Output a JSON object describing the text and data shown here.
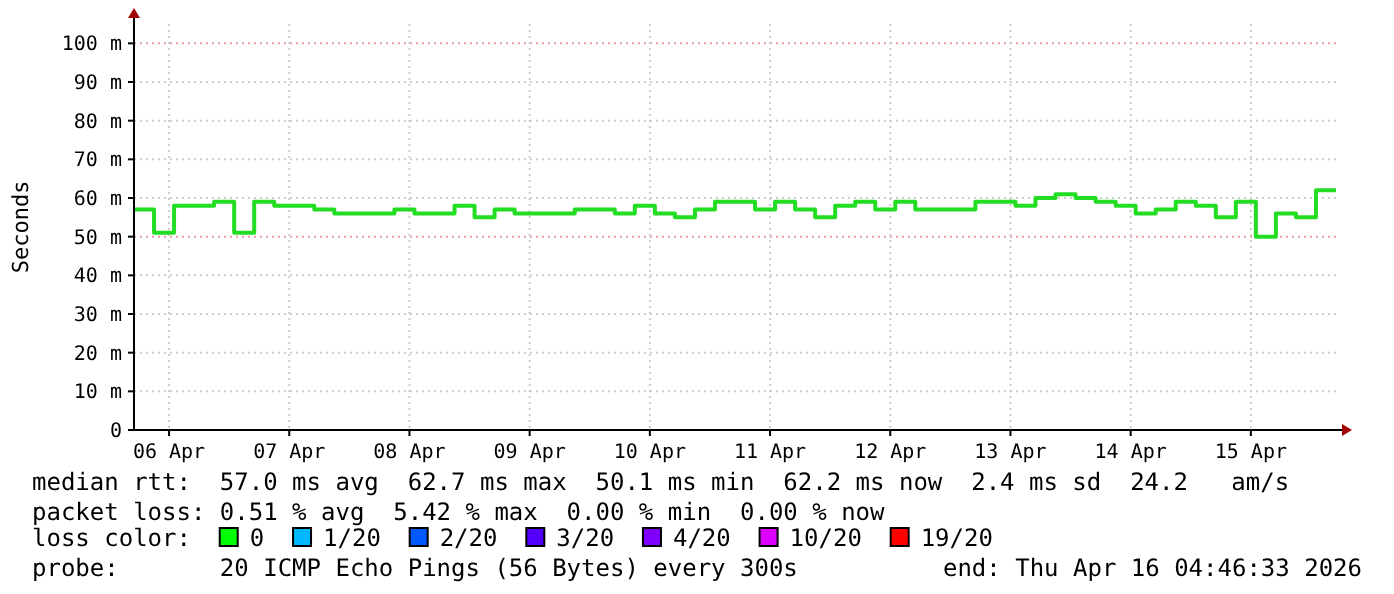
{
  "chart_data": {
    "type": "step",
    "ylabel": "Seconds",
    "x": [
      "2026-04-06T05:00",
      "2026-04-06T09:00",
      "2026-04-06T13:00",
      "2026-04-06T17:00",
      "2026-04-06T21:00",
      "2026-04-07T01:00",
      "2026-04-07T05:00",
      "2026-04-07T09:00",
      "2026-04-07T13:00",
      "2026-04-07T17:00",
      "2026-04-07T21:00",
      "2026-04-08T01:00",
      "2026-04-08T05:00",
      "2026-04-08T09:00",
      "2026-04-08T13:00",
      "2026-04-08T17:00",
      "2026-04-08T21:00",
      "2026-04-09T01:00",
      "2026-04-09T05:00",
      "2026-04-09T09:00",
      "2026-04-09T13:00",
      "2026-04-09T17:00",
      "2026-04-09T21:00",
      "2026-04-10T01:00",
      "2026-04-10T05:00",
      "2026-04-10T09:00",
      "2026-04-10T13:00",
      "2026-04-10T17:00",
      "2026-04-10T21:00",
      "2026-04-11T01:00",
      "2026-04-11T05:00",
      "2026-04-11T09:00",
      "2026-04-11T13:00",
      "2026-04-11T17:00",
      "2026-04-11T21:00",
      "2026-04-12T01:00",
      "2026-04-12T05:00",
      "2026-04-12T09:00",
      "2026-04-12T13:00",
      "2026-04-12T17:00",
      "2026-04-12T21:00",
      "2026-04-13T01:00",
      "2026-04-13T05:00",
      "2026-04-13T09:00",
      "2026-04-13T13:00",
      "2026-04-13T17:00",
      "2026-04-13T21:00",
      "2026-04-14T01:00",
      "2026-04-14T05:00",
      "2026-04-14T09:00",
      "2026-04-14T13:00",
      "2026-04-14T17:00",
      "2026-04-14T21:00",
      "2026-04-15T01:00",
      "2026-04-15T05:00",
      "2026-04-15T09:00",
      "2026-04-15T13:00",
      "2026-04-15T17:00",
      "2026-04-15T21:00",
      "2026-04-16T01:00",
      "2026-04-16T05:00"
    ],
    "series": [
      {
        "color": "#22dd22",
        "values": [
          57,
          51,
          58,
          58,
          59,
          51,
          59,
          58,
          58,
          57,
          56,
          56,
          56,
          57,
          56,
          56,
          58,
          55,
          57,
          56,
          56,
          56,
          57,
          57,
          56,
          58,
          56,
          55,
          57,
          59,
          59,
          57,
          59,
          57,
          55,
          58,
          59,
          57,
          59,
          57,
          57,
          57,
          59,
          59,
          58,
          60,
          61,
          60,
          59,
          58,
          56,
          57,
          59,
          58,
          55,
          59,
          50,
          56,
          55,
          62,
          62
        ]
      }
    ],
    "xlim": [
      "2026-04-06T05:00",
      "2026-04-16T05:00"
    ],
    "xticks": [
      {
        "value": "2026-04-06T12:00",
        "label": "06 Apr"
      },
      {
        "value": "2026-04-07T12:00",
        "label": "07 Apr"
      },
      {
        "value": "2026-04-08T12:00",
        "label": "08 Apr"
      },
      {
        "value": "2026-04-09T12:00",
        "label": "09 Apr"
      },
      {
        "value": "2026-04-10T12:00",
        "label": "10 Apr"
      },
      {
        "value": "2026-04-11T12:00",
        "label": "11 Apr"
      },
      {
        "value": "2026-04-12T12:00",
        "label": "12 Apr"
      },
      {
        "value": "2026-04-13T12:00",
        "label": "13 Apr"
      },
      {
        "value": "2026-04-14T12:00",
        "label": "14 Apr"
      },
      {
        "value": "2026-04-15T12:00",
        "label": "15 Apr"
      }
    ],
    "ylim": [
      0,
      105
    ],
    "yticks": [
      0,
      {
        "value": 10,
        "label": "10 m"
      },
      {
        "value": 20,
        "label": "20 m"
      },
      {
        "value": 30,
        "label": "30 m"
      },
      {
        "value": 40,
        "label": "40 m"
      },
      {
        "value": 50,
        "label": "50 m"
      },
      {
        "value": 60,
        "label": "60 m"
      },
      {
        "value": 70,
        "label": "70 m"
      },
      {
        "value": 80,
        "label": "80 m"
      },
      {
        "value": 90,
        "label": "90 m"
      },
      {
        "value": 100,
        "label": "100 m"
      }
    ],
    "grid": true,
    "annotations": [
      "median rtt:  57.0 ms avg  62.7 ms max  50.1 ms min  62.2 ms now  2.4 ms sd  24.2   am/s",
      "packet loss: 0.51 % avg  5.42 % max  0.00 % min  0.00 % now",
      "loss color:",
      "0",
      "1/20",
      "2/20",
      "3/20",
      "4/20",
      "10/20",
      "19/20",
      "probe:       20 ICMP Echo Pings (56 Bytes) every 300s",
      "end: Thu Apr 16 04:46:33 2026"
    ]
  }
}
